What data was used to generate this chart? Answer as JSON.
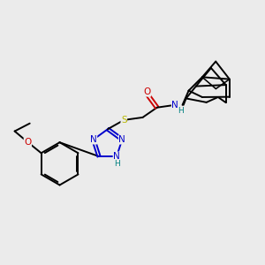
{
  "background_color": "#ebebeb",
  "figsize": [
    3.0,
    3.0
  ],
  "dpi": 100,
  "atom_colors": {
    "C": "#000000",
    "N": "#0000cc",
    "O": "#cc0000",
    "S": "#b8b800",
    "H": "#008080"
  },
  "lw": 1.4,
  "fs": 7.5
}
